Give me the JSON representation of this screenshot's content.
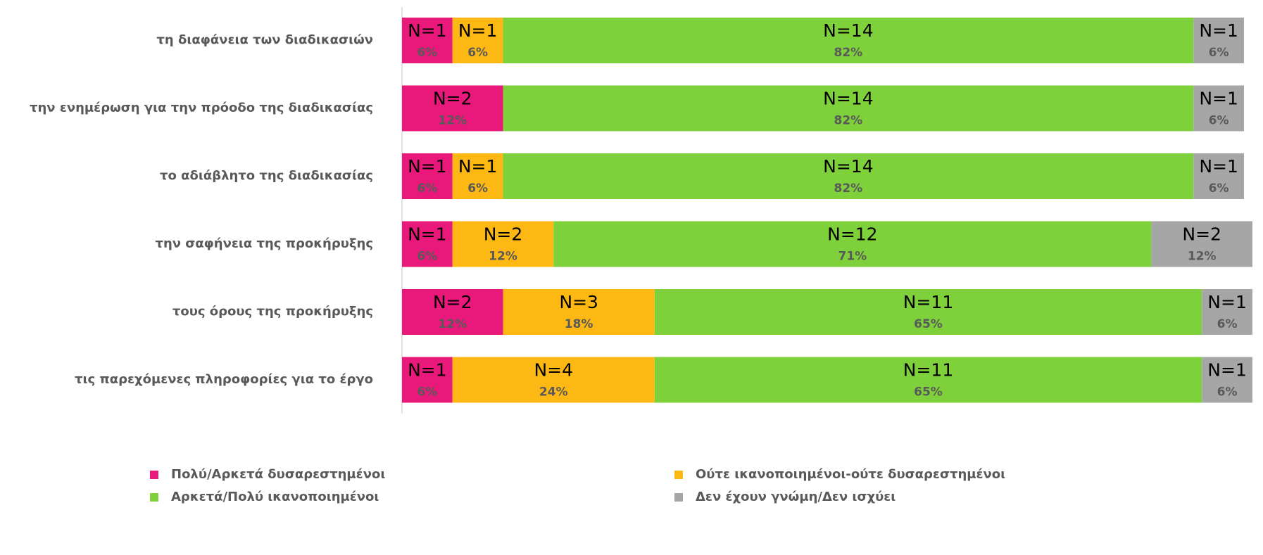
{
  "chart_data": {
    "type": "stacked_bar_horizontal",
    "categories": [
      "τη διαφάνεια των διαδικασιών",
      "την ενημέρωση για την πρόοδο της διαδικασίας",
      "το αδιάβλητο της διαδικασίας",
      "την σαφήνεια της προκήρυξης",
      "τους όρους της προκήρυξης",
      "τις παρεχόμενες πληροφορίες για το έργο"
    ],
    "xlim": [
      0,
      100
    ],
    "series": [
      {
        "name": "Πολύ/Αρκετά δυσαρεστημένοι",
        "color": "#e8197a",
        "values": [
          6,
          12,
          6,
          6,
          12,
          6
        ],
        "value_labels": [
          "6%",
          "12%",
          "6%",
          "6%",
          "12%",
          "6%"
        ],
        "n_labels": [
          "N=1",
          "N=2",
          "N=1",
          "N=1",
          "N=2",
          "N=1"
        ]
      },
      {
        "name": "Ούτε ικανοποιημένοι-ούτε δυσαρεστημένοι",
        "color": "#fdb813",
        "values": [
          6,
          null,
          6,
          12,
          18,
          24
        ],
        "value_labels": [
          "6%",
          null,
          "6%",
          "12%",
          "18%",
          "24%"
        ],
        "n_labels": [
          "N=1",
          null,
          "N=1",
          "N=2",
          "N=3",
          "N=4"
        ]
      },
      {
        "name": "Αρκετά/Πολύ ικανοποιημένοι",
        "color": "#7ed13b",
        "values": [
          82,
          82,
          82,
          71,
          65,
          65
        ],
        "value_labels": [
          "82%",
          "82%",
          "82%",
          "71%",
          "65%",
          "65%"
        ],
        "n_labels": [
          "N=14",
          "N=14",
          "N=14",
          "N=12",
          "N=11",
          "N=11"
        ]
      },
      {
        "name": "Δεν έχουν γνώμη/Δεν ισχύει",
        "color": "#a6a6a6",
        "values": [
          6,
          6,
          6,
          12,
          6,
          6
        ],
        "value_labels": [
          "6%",
          "6%",
          "6%",
          "12%",
          "6%",
          "6%"
        ],
        "n_labels": [
          "N=1",
          "N=1",
          "N=1",
          "N=2",
          "N=1",
          "N=1"
        ]
      }
    ]
  }
}
